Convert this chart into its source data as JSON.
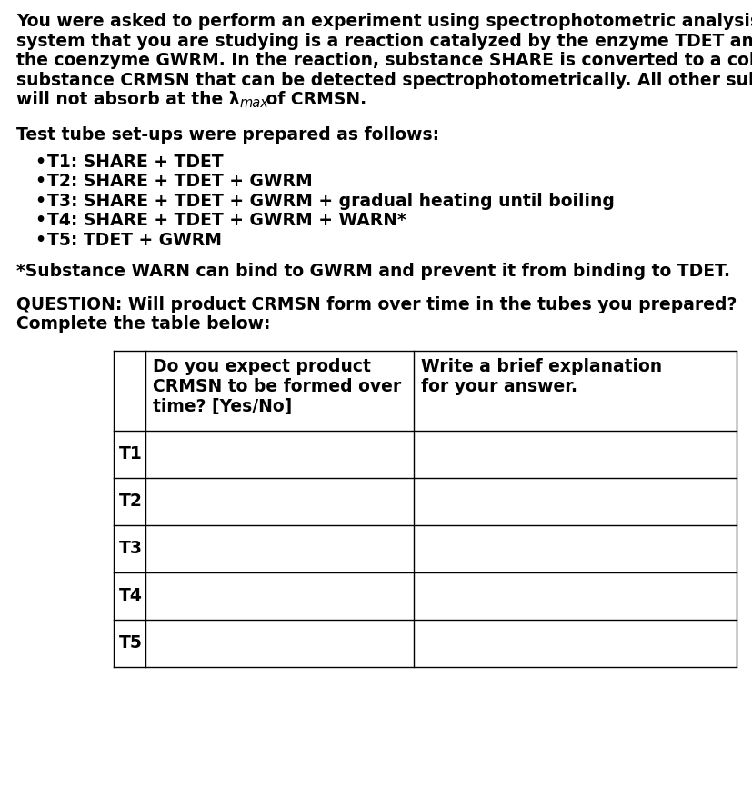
{
  "background_color": "#ffffff",
  "text_color": "#000000",
  "para1_lines": [
    "You were asked to perform an experiment using spectrophotometric analysis. The",
    "system that you are studying is a reaction catalyzed by the enzyme TDET and requires",
    "the coenzyme GWRM. In the reaction, substance SHARE is converted to a colored",
    "substance CRMSN that can be detected spectrophotometrically. All other substances",
    "will not absorb at the λ"
  ],
  "para1_max": "max",
  "para1_end": " of CRMSN.",
  "para2": "Test tube set-ups were prepared as follows:",
  "bullets": [
    "T1: SHARE + TDET",
    "T2: SHARE + TDET + GWRM",
    "T3: SHARE + TDET + GWRM + gradual heating until boiling",
    "T4: SHARE + TDET + GWRM + WARN*",
    "T5: TDET + GWRM"
  ],
  "footnote": "*Substance WARN can bind to GWRM and prevent it from binding to TDET.",
  "question_line1": "QUESTION: Will product CRMSN form over time in the tubes you prepared?",
  "question_line2": "Complete the table below:",
  "col0_header": "",
  "col1_header_lines": [
    "Do you expect product",
    "CRMSN to be formed over",
    "time? [Yes/No]"
  ],
  "col2_header_lines": [
    "Write a brief explanation",
    "for your answer."
  ],
  "row_labels": [
    "T1",
    "T2",
    "T3",
    "T4",
    "T5"
  ],
  "font_size": 13.5,
  "font_family": "Arial"
}
